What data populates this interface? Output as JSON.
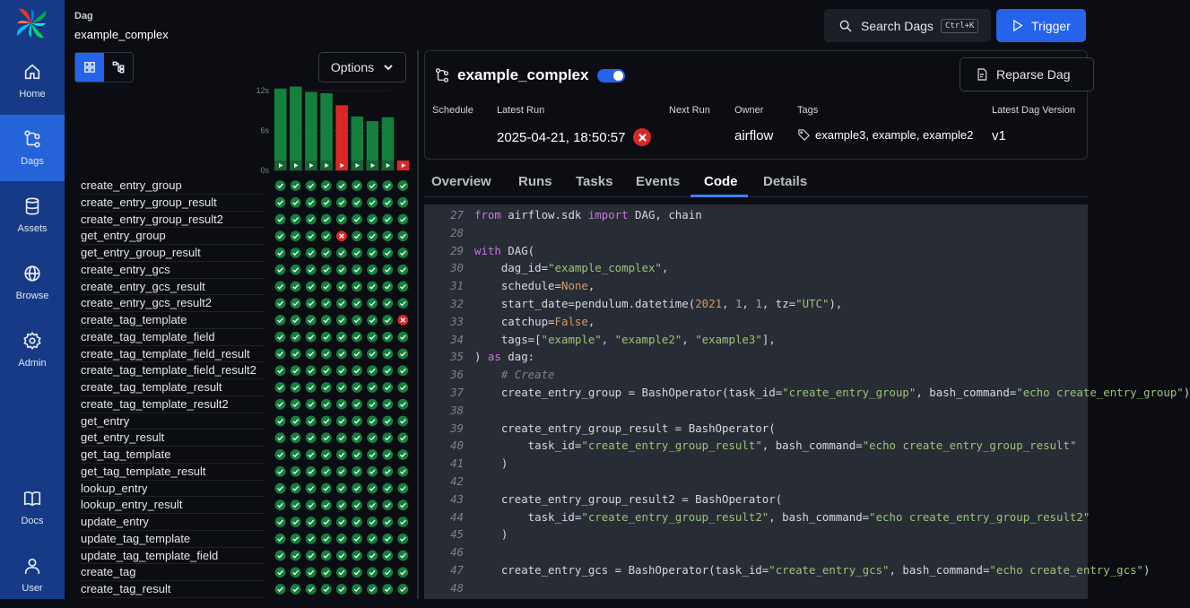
{
  "sidebar": {
    "logo": "airflow-pinwheel-logo",
    "items": [
      {
        "label": "Home",
        "icon": "home-icon"
      },
      {
        "label": "Dags",
        "icon": "dag-icon",
        "active": true
      },
      {
        "label": "Assets",
        "icon": "database-icon"
      },
      {
        "label": "Browse",
        "icon": "globe-icon"
      },
      {
        "label": "Admin",
        "icon": "gear-icon"
      },
      {
        "label": "Docs",
        "icon": "book-icon"
      },
      {
        "label": "User",
        "icon": "user-icon"
      }
    ]
  },
  "breadcrumb": {
    "label": "Dag",
    "name": "example_complex"
  },
  "header": {
    "search_label": "Search Dags",
    "search_shortcut": "Ctrl+K",
    "trigger_label": "Trigger"
  },
  "grid": {
    "options_label": "Options",
    "duration_axis": [
      "12s",
      "6s",
      "0s"
    ],
    "run_durations": [
      12.3,
      12.6,
      11.8,
      11.6,
      9.8,
      8.1,
      7.4,
      8.0,
      1.0
    ],
    "run_states": [
      "success",
      "success",
      "success",
      "success",
      "failed",
      "success",
      "success",
      "success",
      "failed"
    ],
    "tasks": [
      "create_entry_group",
      "create_entry_group_result",
      "create_entry_group_result2",
      "get_entry_group",
      "get_entry_group_result",
      "create_entry_gcs",
      "create_entry_gcs_result",
      "create_entry_gcs_result2",
      "create_tag_template",
      "create_tag_template_field",
      "create_tag_template_field_result",
      "create_tag_template_field_result2",
      "create_tag_template_result",
      "create_tag_template_result2",
      "get_entry",
      "get_entry_result",
      "get_tag_template",
      "get_tag_template_result",
      "lookup_entry",
      "lookup_entry_result",
      "update_entry",
      "update_tag_template",
      "update_tag_template_field",
      "create_tag",
      "create_tag_result"
    ],
    "failed_cells": [
      {
        "task": 3,
        "run": 4
      },
      {
        "task": 8,
        "run": 8
      }
    ],
    "status_colors": {
      "success": "#15803d",
      "failed": "#dc2626"
    }
  },
  "dag": {
    "title": "example_complex",
    "paused": false,
    "reparse_label": "Reparse Dag",
    "meta_headers": [
      "Schedule",
      "Latest Run",
      "Next Run",
      "Owner",
      "Tags",
      "Latest Dag Version"
    ],
    "latest_run": "2025-04-21, 18:50:57",
    "owner": "airflow",
    "tags": "example3, example, example2",
    "version": "v1"
  },
  "tabs": [
    {
      "label": "Overview"
    },
    {
      "label": "Runs"
    },
    {
      "label": "Tasks"
    },
    {
      "label": "Events"
    },
    {
      "label": "Code",
      "active": true
    },
    {
      "label": "Details"
    }
  ],
  "code": [
    {
      "n": "27",
      "html": "<span class=\"k\">from</span> airflow.sdk <span class=\"k\">import</span> DAG, chain"
    },
    {
      "n": "28",
      "html": ""
    },
    {
      "n": "29",
      "html": "<span class=\"k\">with</span> DAG("
    },
    {
      "n": "30",
      "html": "    dag_id=<span class=\"s\">\"example_complex\"</span>,"
    },
    {
      "n": "31",
      "html": "    schedule=<span class=\"n\">None</span>,"
    },
    {
      "n": "32",
      "html": "    start_date=pendulum.datetime(<span class=\"n\">2021</span>, <span class=\"n\">1</span>, <span class=\"n\">1</span>, tz=<span class=\"s\">\"UTC\"</span>),"
    },
    {
      "n": "33",
      "html": "    catchup=<span class=\"n\">False</span>,"
    },
    {
      "n": "34",
      "html": "    tags=[<span class=\"s\">\"example\"</span>, <span class=\"s\">\"example2\"</span>, <span class=\"s\">\"example3\"</span>],"
    },
    {
      "n": "35",
      "html": ") <span class=\"k\">as</span> dag:"
    },
    {
      "n": "36",
      "html": "    <span class=\"c\"># Create</span>"
    },
    {
      "n": "37",
      "html": "    create_entry_group = BashOperator(task_id=<span class=\"s\">\"create_entry_group\"</span>, bash_command=<span class=\"s\">\"echo create_entry_group\"</span>)"
    },
    {
      "n": "38",
      "html": ""
    },
    {
      "n": "39",
      "html": "    create_entry_group_result = BashOperator("
    },
    {
      "n": "40",
      "html": "        task_id=<span class=\"s\">\"create_entry_group_result\"</span>, bash_command=<span class=\"s\">\"echo create_entry_group_result\"</span>"
    },
    {
      "n": "41",
      "html": "    )"
    },
    {
      "n": "42",
      "html": ""
    },
    {
      "n": "43",
      "html": "    create_entry_group_result2 = BashOperator("
    },
    {
      "n": "44",
      "html": "        task_id=<span class=\"s\">\"create_entry_group_result2\"</span>, bash_command=<span class=\"s\">\"echo create_entry_group_result2\"</span>"
    },
    {
      "n": "45",
      "html": "    )"
    },
    {
      "n": "46",
      "html": ""
    },
    {
      "n": "47",
      "html": "    create_entry_gcs = BashOperator(task_id=<span class=\"s\">\"create_entry_gcs\"</span>, bash_command=<span class=\"s\">\"echo create_entry_gcs\"</span>)"
    },
    {
      "n": "48",
      "html": ""
    }
  ]
}
